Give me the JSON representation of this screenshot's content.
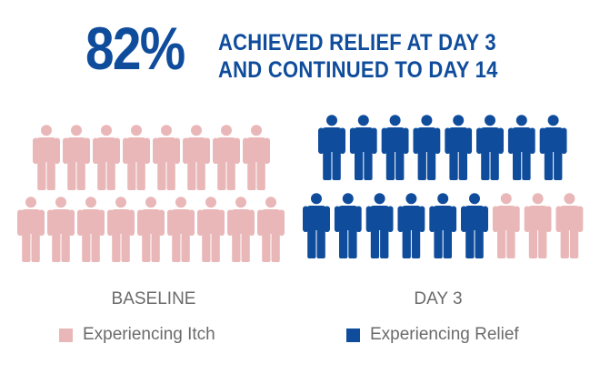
{
  "headline": {
    "percent": "82%",
    "line1": "ACHIEVED RELIEF AT DAY 3",
    "line2": "AND CONTINUED TO DAY 14"
  },
  "colors": {
    "brand_blue": "#0f4c9c",
    "itch_pink": "#e9b7b8",
    "label_gray": "#6b6b6b",
    "headline_blue": "#0f4c9c"
  },
  "icons": {
    "person": "person-icon"
  },
  "chart_data": {
    "type": "pictograph",
    "unit_icon": "person",
    "groups": [
      {
        "name": "BASELINE",
        "total": 17,
        "counts": {
          "Experiencing Itch": 17,
          "Experiencing Relief": 0
        }
      },
      {
        "name": "DAY 3",
        "total": 17,
        "counts": {
          "Experiencing Itch": 3,
          "Experiencing Relief": 14
        }
      }
    ],
    "legend": [
      {
        "label": "Experiencing Itch",
        "color": "#e9b7b8"
      },
      {
        "label": "Experiencing Relief",
        "color": "#0f4c9c"
      }
    ]
  }
}
